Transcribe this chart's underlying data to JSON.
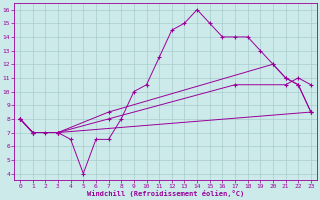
{
  "xlabel": "Windchill (Refroidissement éolien,°C)",
  "bg_color": "#cceaea",
  "line_color": "#990099",
  "grid_color": "#aacccc",
  "xlim": [
    -0.5,
    23.5
  ],
  "ylim": [
    3.5,
    16.5
  ],
  "xticks": [
    0,
    1,
    2,
    3,
    4,
    5,
    6,
    7,
    8,
    9,
    10,
    11,
    12,
    13,
    14,
    15,
    16,
    17,
    18,
    19,
    20,
    21,
    22,
    23
  ],
  "yticks": [
    4,
    5,
    6,
    7,
    8,
    9,
    10,
    11,
    12,
    13,
    14,
    15,
    16
  ],
  "line1_x": [
    0,
    1,
    2,
    3,
    4,
    5,
    6,
    7,
    8,
    9,
    10,
    11,
    12,
    13,
    14,
    15,
    16,
    17,
    18,
    19,
    20,
    21,
    22,
    23
  ],
  "line1_y": [
    8.0,
    7.0,
    7.0,
    7.0,
    6.5,
    4.0,
    6.5,
    6.5,
    8.0,
    10.0,
    10.5,
    12.5,
    14.5,
    15.0,
    16.0,
    15.0,
    14.0,
    14.0,
    14.0,
    13.0,
    12.0,
    11.0,
    10.5,
    8.5
  ],
  "line2_x": [
    0,
    1,
    3,
    23
  ],
  "line2_y": [
    8.0,
    7.0,
    7.0,
    8.5
  ],
  "line3_x": [
    0,
    1,
    3,
    7,
    17,
    21,
    22,
    23
  ],
  "line3_y": [
    8.0,
    7.0,
    7.0,
    8.0,
    10.5,
    10.5,
    11.0,
    10.5
  ],
  "line4_x": [
    0,
    1,
    3,
    7,
    20,
    21,
    22,
    23
  ],
  "line4_y": [
    8.0,
    7.0,
    7.0,
    8.5,
    12.0,
    11.0,
    10.5,
    8.5
  ]
}
